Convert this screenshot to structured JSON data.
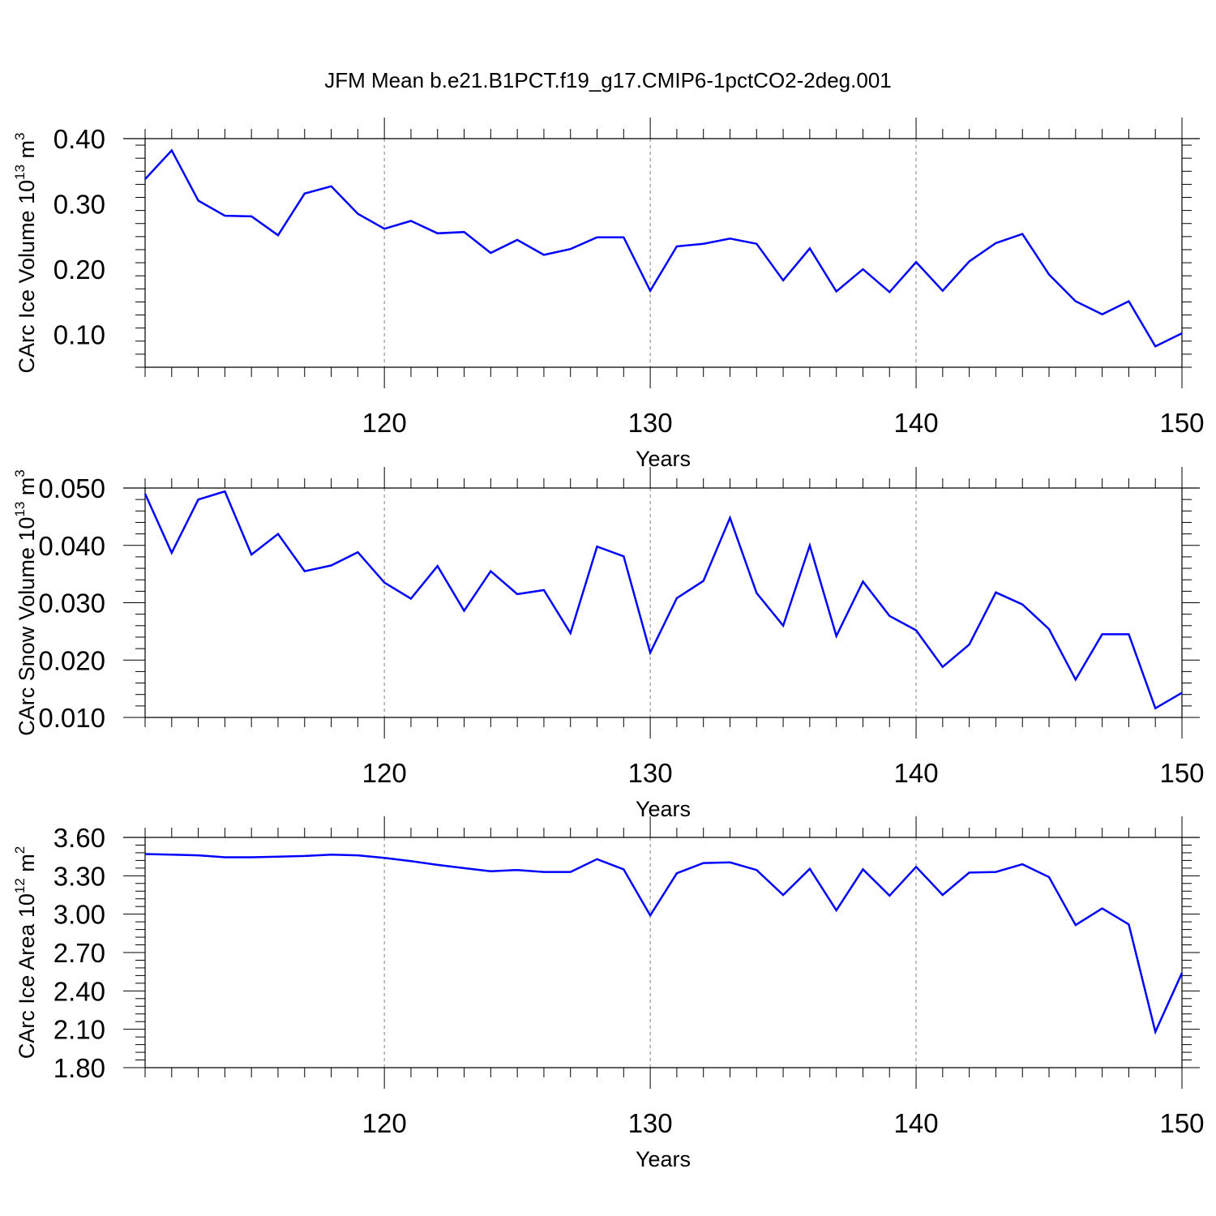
{
  "title": "JFM Mean b.e21.B1PCT.f19_g17.CMIP6-1pctCO2-2deg.001",
  "colors": {
    "line": "#0000ff",
    "frame": "#000000",
    "grid": "#808080"
  },
  "chart_data": [
    {
      "type": "line",
      "ylabel": {
        "text": "CArc Ice Volume 10",
        "exp": "13",
        "unit": " m",
        "unit_exp": "3"
      },
      "xlabel": "Years",
      "xlim": [
        111,
        150
      ],
      "ylim": [
        0.05,
        0.4
      ],
      "xticks": [
        120,
        130,
        140,
        150
      ],
      "xtick_labels": [
        "120",
        "130",
        "140",
        "150"
      ],
      "yticks": [
        0.1,
        0.2,
        0.3,
        0.4
      ],
      "ytick_labels": [
        "0.10",
        "0.20",
        "0.30",
        "0.40"
      ],
      "grid": "dashed vertical at major x ticks",
      "series": [
        {
          "x": [
            111,
            112,
            113,
            114,
            115,
            116,
            117,
            118,
            119,
            120,
            121,
            122,
            123,
            124,
            125,
            126,
            127,
            128,
            129,
            130,
            131,
            132,
            133,
            134,
            135,
            136,
            137,
            138,
            139,
            140,
            141,
            142,
            143,
            144,
            145,
            146,
            147,
            148,
            149,
            150
          ],
          "values": [
            0.338,
            0.382,
            0.305,
            0.282,
            0.281,
            0.252,
            0.316,
            0.327,
            0.285,
            0.262,
            0.274,
            0.255,
            0.257,
            0.225,
            0.245,
            0.222,
            0.231,
            0.249,
            0.249,
            0.167,
            0.235,
            0.239,
            0.247,
            0.239,
            0.183,
            0.232,
            0.166,
            0.2,
            0.165,
            0.211,
            0.167,
            0.212,
            0.24,
            0.254,
            0.192,
            0.151,
            0.131,
            0.151,
            0.082,
            0.102
          ]
        }
      ]
    },
    {
      "type": "line",
      "ylabel": {
        "text": "CArc Snow Volume 10",
        "exp": "13",
        "unit": " m",
        "unit_exp": "3"
      },
      "xlabel": "Years",
      "xlim": [
        111,
        150
      ],
      "ylim": [
        0.01,
        0.05
      ],
      "xticks": [
        120,
        130,
        140,
        150
      ],
      "xtick_labels": [
        "120",
        "130",
        "140",
        "150"
      ],
      "yticks": [
        0.01,
        0.02,
        0.03,
        0.04,
        0.05
      ],
      "ytick_labels": [
        "0.010",
        "0.020",
        "0.030",
        "0.040",
        "0.050"
      ],
      "grid": "dashed vertical at major x ticks",
      "series": [
        {
          "x": [
            111,
            112,
            113,
            114,
            115,
            116,
            117,
            118,
            119,
            120,
            121,
            122,
            123,
            124,
            125,
            126,
            127,
            128,
            129,
            130,
            131,
            132,
            133,
            134,
            135,
            136,
            137,
            138,
            139,
            140,
            141,
            142,
            143,
            144,
            145,
            146,
            147,
            148,
            149,
            150
          ],
          "values": [
            0.049,
            0.0387,
            0.048,
            0.0494,
            0.0384,
            0.042,
            0.0355,
            0.0365,
            0.0388,
            0.0335,
            0.0307,
            0.0364,
            0.0286,
            0.0355,
            0.0315,
            0.0322,
            0.0247,
            0.0398,
            0.0381,
            0.0213,
            0.0308,
            0.0338,
            0.0448,
            0.0317,
            0.026,
            0.04,
            0.0242,
            0.0337,
            0.0277,
            0.0252,
            0.0188,
            0.0227,
            0.0318,
            0.0297,
            0.0254,
            0.0166,
            0.0245,
            0.0245,
            0.0116,
            0.0143
          ]
        }
      ]
    },
    {
      "type": "line",
      "ylabel": {
        "text": "CArc Ice Area 10",
        "exp": "12",
        "unit": " m",
        "unit_exp": "2"
      },
      "xlabel": "Years",
      "xlim": [
        111,
        150
      ],
      "ylim": [
        1.8,
        3.6
      ],
      "xticks": [
        120,
        130,
        140,
        150
      ],
      "xtick_labels": [
        "120",
        "130",
        "140",
        "150"
      ],
      "yticks": [
        1.8,
        2.1,
        2.4,
        2.7,
        3.0,
        3.3,
        3.6
      ],
      "ytick_labels": [
        "1.80",
        "2.10",
        "2.40",
        "2.70",
        "3.00",
        "3.30",
        "3.60"
      ],
      "grid": "dashed vertical at major x ticks",
      "series": [
        {
          "x": [
            111,
            112,
            113,
            114,
            115,
            116,
            117,
            118,
            119,
            120,
            121,
            122,
            123,
            124,
            125,
            126,
            127,
            128,
            129,
            130,
            131,
            132,
            133,
            134,
            135,
            136,
            137,
            138,
            139,
            140,
            141,
            142,
            143,
            144,
            145,
            146,
            147,
            148,
            149,
            150
          ],
          "values": [
            3.47,
            3.465,
            3.46,
            3.445,
            3.445,
            3.45,
            3.455,
            3.465,
            3.46,
            3.44,
            3.415,
            3.385,
            3.36,
            3.335,
            3.345,
            3.33,
            3.33,
            3.43,
            3.35,
            2.99,
            3.32,
            3.4,
            3.405,
            3.345,
            3.15,
            3.355,
            3.03,
            3.35,
            3.145,
            3.37,
            3.15,
            3.325,
            3.33,
            3.39,
            3.29,
            2.915,
            3.045,
            2.92,
            2.08,
            2.54
          ]
        }
      ]
    }
  ]
}
